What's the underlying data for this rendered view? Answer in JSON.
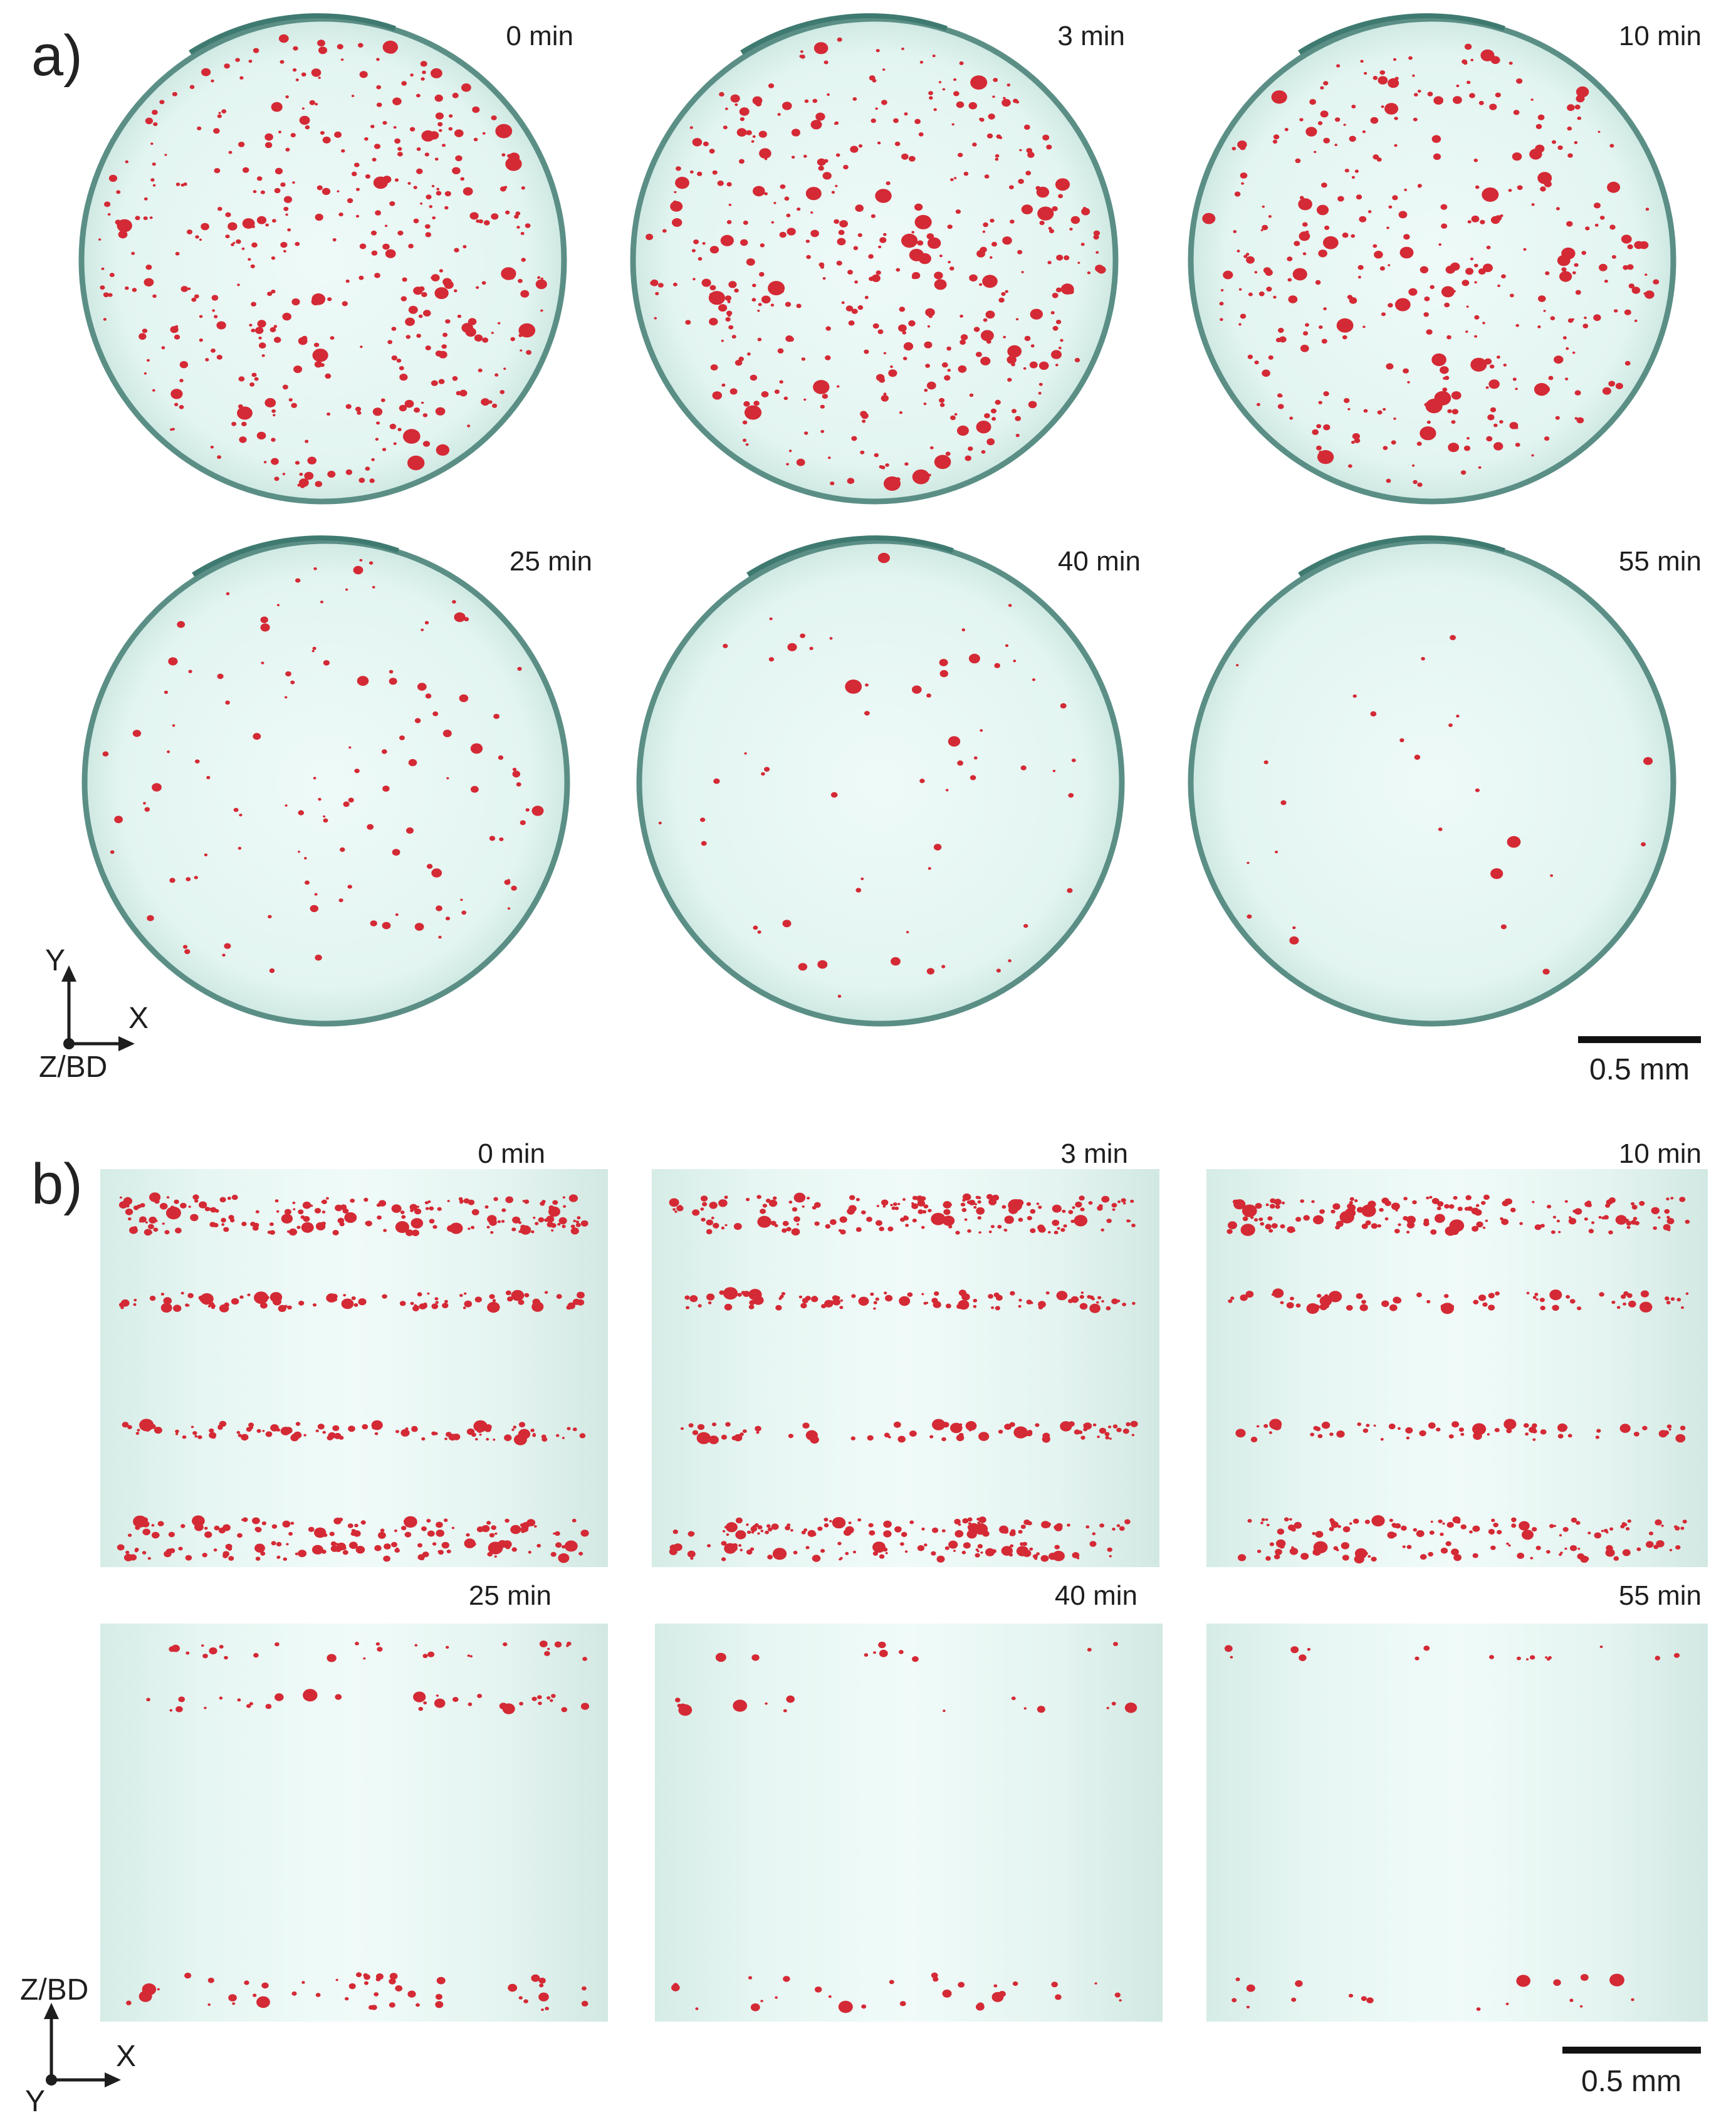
{
  "panels": {
    "a": {
      "letter": "a)",
      "view": "top",
      "labels": [
        "0 min",
        "3 min",
        "10 min",
        "25 min",
        "40 min",
        "55 min"
      ],
      "particle_counts": [
        430,
        430,
        360,
        120,
        60,
        25
      ]
    },
    "b": {
      "letter": "b)",
      "view": "side",
      "labels": [
        "0 min",
        "3 min",
        "10 min",
        "25 min",
        "40 min",
        "55 min"
      ],
      "particle_counts": [
        520,
        500,
        420,
        110,
        55,
        35
      ]
    }
  },
  "axes_a": {
    "vertical": "Y",
    "horizontal": "X",
    "out_of_plane": "Z/BD"
  },
  "axes_b": {
    "vertical": "Z/BD",
    "horizontal": "X",
    "out_of_plane": "Y"
  },
  "scale_bar": {
    "label": "0.5 mm"
  },
  "colors": {
    "particle": "#d42a35",
    "sample_fill": "#e8f7f4",
    "sample_rim": "#5b8f86",
    "text": "#1e1e1e"
  }
}
